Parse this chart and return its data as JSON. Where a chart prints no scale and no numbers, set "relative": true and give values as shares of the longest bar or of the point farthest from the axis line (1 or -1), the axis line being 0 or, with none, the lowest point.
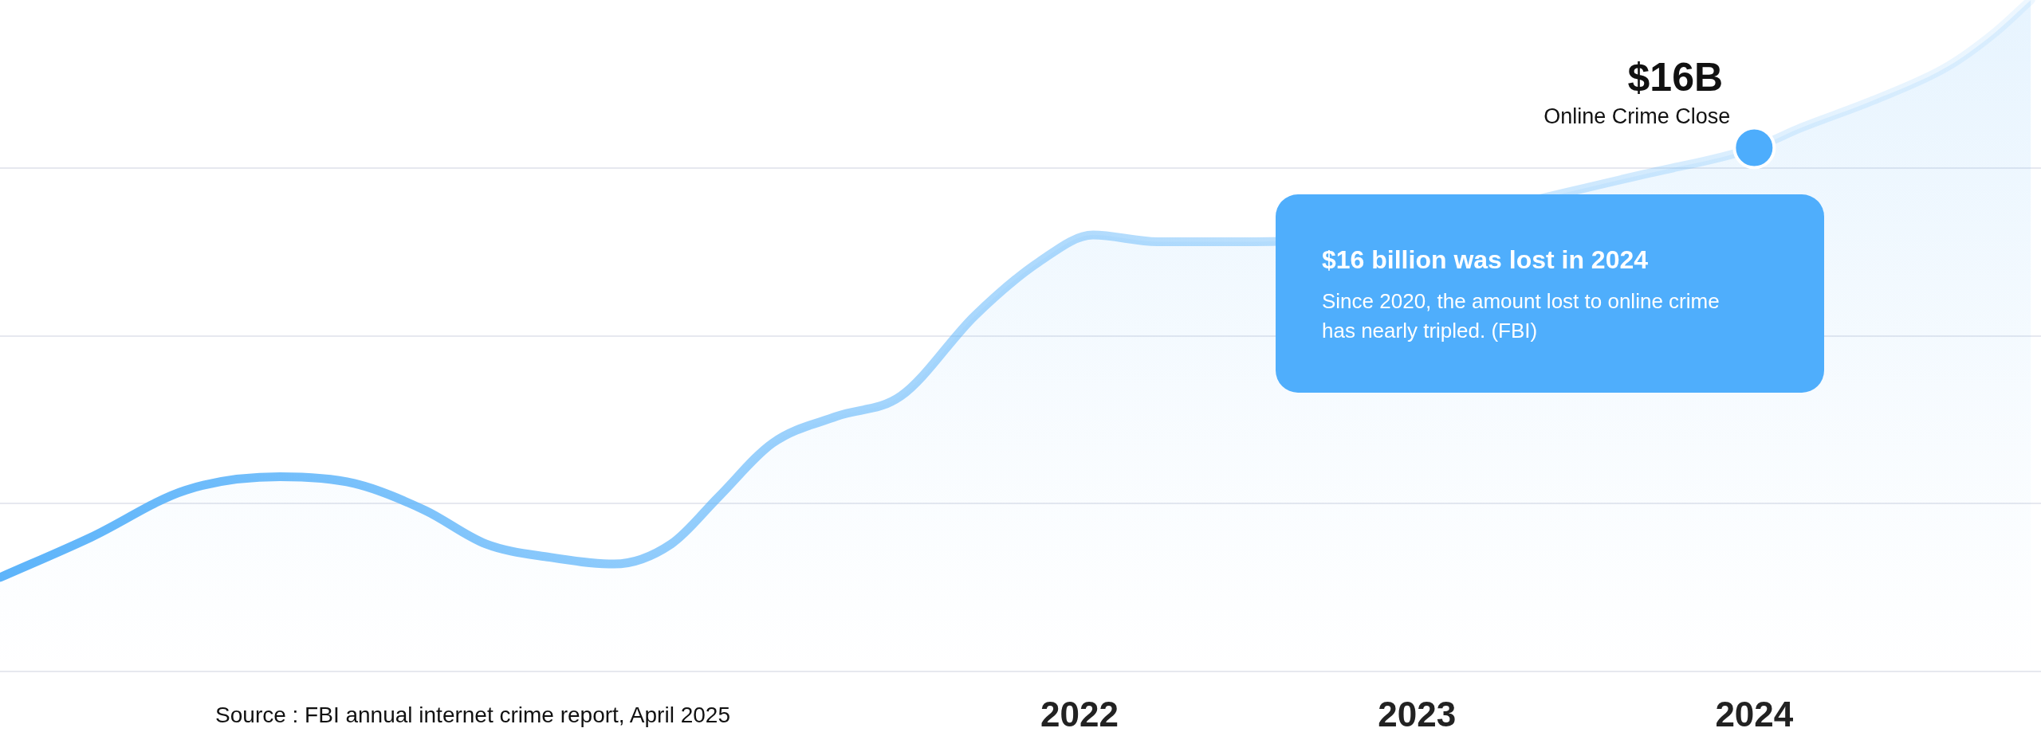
{
  "chart_data": {
    "type": "area",
    "relative": true,
    "x": [
      2018.8,
      2019.07,
      2019.35,
      2019.63,
      2019.85,
      2020.06,
      2020.24,
      2020.43,
      2020.62,
      2020.79,
      2020.93,
      2021.09,
      2021.28,
      2021.47,
      2021.69,
      2021.88,
      2022.04,
      2022.23,
      2022.41,
      2022.52,
      2023.76,
      2024,
      2024.14,
      2024.35,
      2024.57,
      2024.71,
      2024.82
    ],
    "series": [
      {
        "color": "#5db4fa",
        "values": [
          0.14,
          0.2,
          0.27,
          0.29,
          0.28,
          0.24,
          0.19,
          0.17,
          0.16,
          0.19,
          0.26,
          0.34,
          0.38,
          0.41,
          0.53,
          0.61,
          0.65,
          0.64,
          0.64,
          0.64,
          0.75,
          0.78,
          0.81,
          0.85,
          0.9,
          0.95,
          1
        ]
      },
      {
        "type": "scatter",
        "color": "#4dadfc",
        "x": [
          2024
        ],
        "values": [
          0.78
        ]
      }
    ],
    "xlim": [
      2018.8,
      2024.85
    ],
    "xticks": [
      2022,
      2023,
      2024
    ],
    "grid": "y",
    "annotations": [
      {
        "text": "$16B",
        "x": 2024,
        "y": 0.78
      },
      {
        "text": "Online Crime Close",
        "x": 2024,
        "y": 0.78
      },
      "$16 billion was lost in 2024",
      "Since 2020, the amount lost to online crime has nearly tripled. (FBI)",
      "Source : FBI annual internet crime report, April 2025"
    ]
  }
}
